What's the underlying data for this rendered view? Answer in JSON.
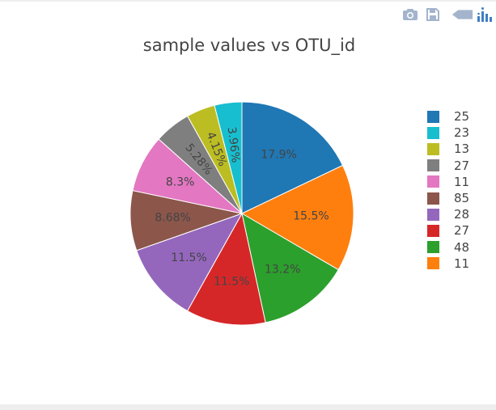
{
  "toolbar": {
    "icons": [
      "camera-icon",
      "save-icon",
      "back-arrow-icon",
      "plotly-logo-icon"
    ],
    "icon_color": "#a3b4cc",
    "logo_color": "#3f7ec4"
  },
  "chart_data": {
    "type": "pie",
    "title": "sample values vs OTU_id",
    "labels": [
      "25",
      "11",
      "48",
      "27",
      "28",
      "85",
      "11",
      "27",
      "13",
      "23"
    ],
    "values": [
      17.9,
      15.5,
      13.2,
      11.5,
      11.5,
      8.68,
      8.3,
      5.28,
      4.15,
      3.96
    ],
    "text": [
      "17.9%",
      "15.5%",
      "13.2%",
      "11.5%",
      "11.5%",
      "8.68%",
      "8.3%",
      "5.28%",
      "4.15%",
      "3.96%"
    ],
    "colors": [
      "#1f77b4",
      "#ff7f0e",
      "#2ca02c",
      "#d62728",
      "#9467bd",
      "#8c564b",
      "#e377c2",
      "#7f7f7f",
      "#bcbd22",
      "#17becf"
    ],
    "sort_order": [
      0,
      9,
      8,
      7,
      6,
      5,
      4,
      3,
      2,
      1
    ],
    "direction": "clockwise",
    "legend_position": "right"
  }
}
